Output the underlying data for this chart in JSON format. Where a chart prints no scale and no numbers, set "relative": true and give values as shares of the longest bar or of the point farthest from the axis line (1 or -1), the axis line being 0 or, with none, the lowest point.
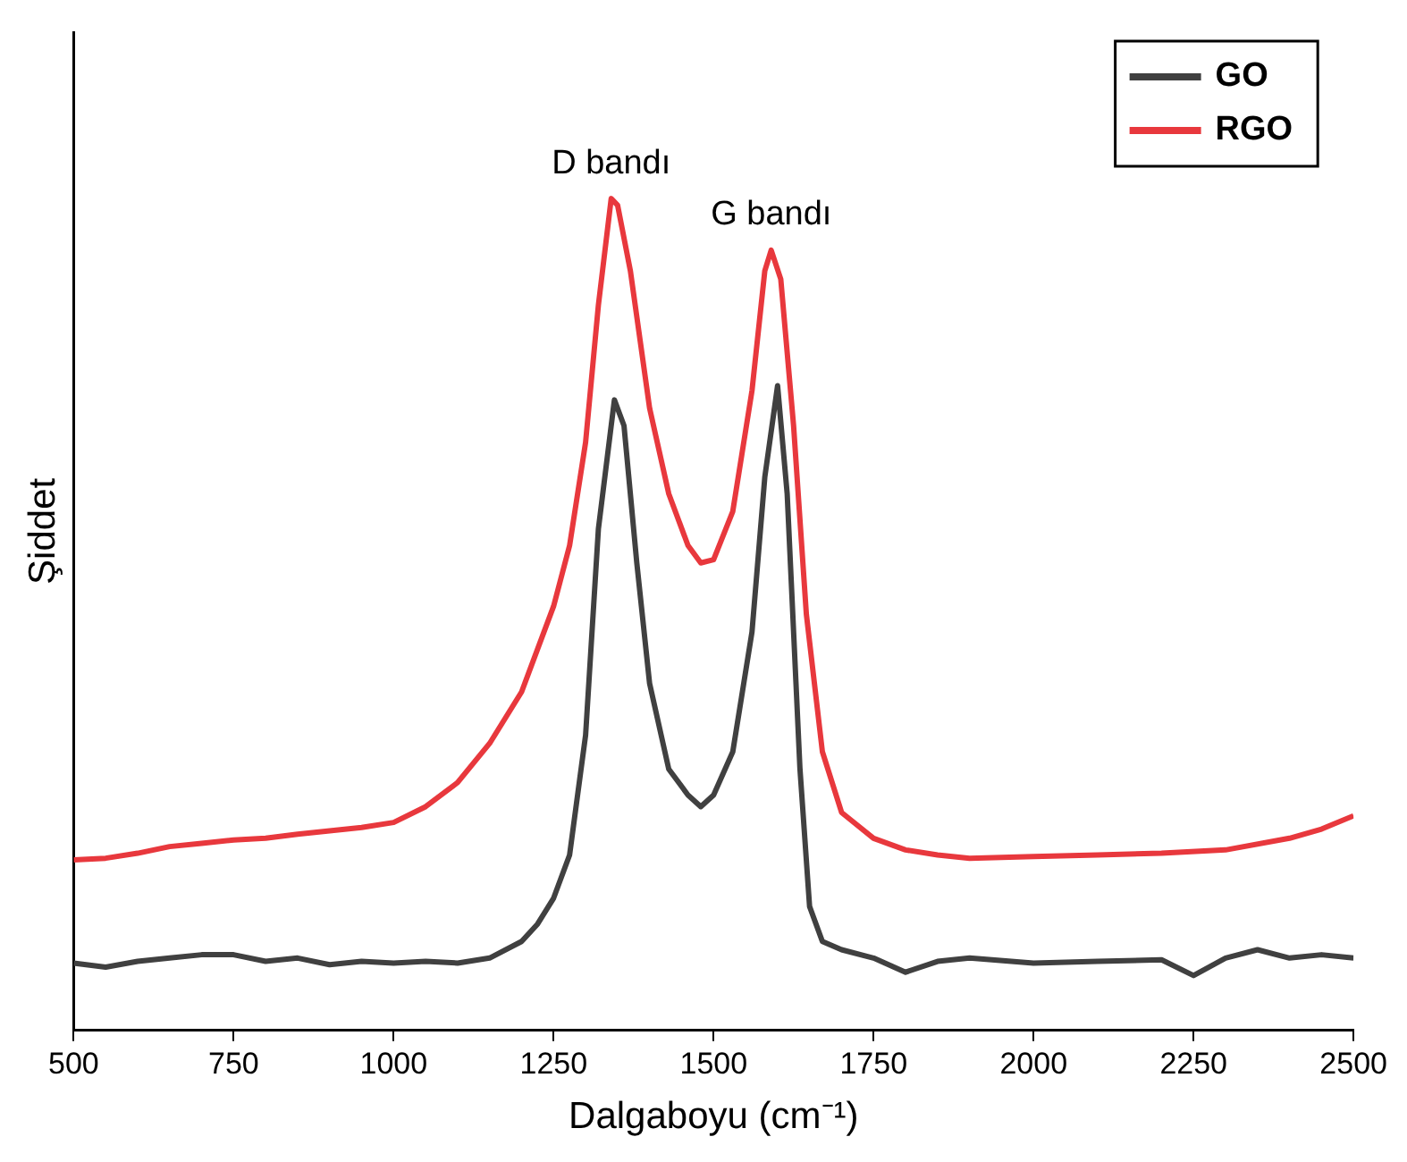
{
  "chart_data": {
    "type": "line",
    "relative": true,
    "xlabel": "Dalgaboyu (cm⁻¹)",
    "ylabel": "Şiddet",
    "xlim": [
      500,
      2500
    ],
    "xticks": [
      500,
      750,
      1000,
      1250,
      1500,
      1750,
      2000,
      2250,
      2500
    ],
    "tick_labels": "x",
    "legend": "top right",
    "marker": "none",
    "x": [
      500,
      550,
      600,
      650,
      700,
      750,
      800,
      850,
      900,
      950,
      1000,
      1050,
      1100,
      1150,
      1200,
      1225,
      1250,
      1275,
      1300,
      1320,
      1345,
      1360,
      1380,
      1400,
      1430,
      1460,
      1480,
      1500,
      1530,
      1560,
      1580,
      1600,
      1615,
      1635,
      1650,
      1670,
      1700,
      1750,
      1800,
      1850,
      1900,
      2000,
      2100,
      2200,
      2250,
      2300,
      2350,
      2400,
      2450,
      2500
    ],
    "series": [
      {
        "name": "GO",
        "color": "#404040",
        "values": [
          0.081,
          0.076,
          0.083,
          0.087,
          0.091,
          0.091,
          0.083,
          0.087,
          0.079,
          0.083,
          0.081,
          0.083,
          0.081,
          0.087,
          0.107,
          0.128,
          0.159,
          0.211,
          0.355,
          0.603,
          0.758,
          0.727,
          0.562,
          0.417,
          0.314,
          0.283,
          0.269,
          0.283,
          0.335,
          0.479,
          0.665,
          0.775,
          0.645,
          0.314,
          0.149,
          0.107,
          0.097,
          0.087,
          0.07,
          0.083,
          0.087,
          0.081,
          0.083,
          0.085,
          0.066,
          0.087,
          0.097,
          0.087,
          0.091,
          0.087
        ]
      },
      {
        "name": "RGO",
        "color": "#e8383d",
        "x": [
          500,
          550,
          600,
          650,
          700,
          750,
          800,
          850,
          900,
          950,
          1000,
          1050,
          1100,
          1150,
          1200,
          1250,
          1275,
          1300,
          1320,
          1340,
          1350,
          1370,
          1400,
          1430,
          1460,
          1480,
          1500,
          1530,
          1560,
          1580,
          1590,
          1605,
          1625,
          1645,
          1670,
          1700,
          1750,
          1800,
          1850,
          1900,
          2000,
          2100,
          2200,
          2300,
          2400,
          2450,
          2500
        ],
        "values": [
          0.205,
          0.207,
          0.213,
          0.221,
          0.225,
          0.229,
          0.231,
          0.236,
          0.24,
          0.244,
          0.25,
          0.269,
          0.298,
          0.345,
          0.407,
          0.51,
          0.583,
          0.707,
          0.872,
          1,
          0.992,
          0.913,
          0.748,
          0.645,
          0.583,
          0.562,
          0.566,
          0.624,
          0.769,
          0.913,
          0.938,
          0.903,
          0.727,
          0.5,
          0.335,
          0.262,
          0.231,
          0.217,
          0.211,
          0.207,
          0.209,
          0.211,
          0.213,
          0.217,
          0.231,
          0.242,
          0.258
        ]
      }
    ],
    "annotations": [
      {
        "text": "D bandı",
        "x": 1340,
        "y": 1
      },
      {
        "text": "G bandı",
        "x": 1590,
        "y": 0.938
      }
    ]
  }
}
